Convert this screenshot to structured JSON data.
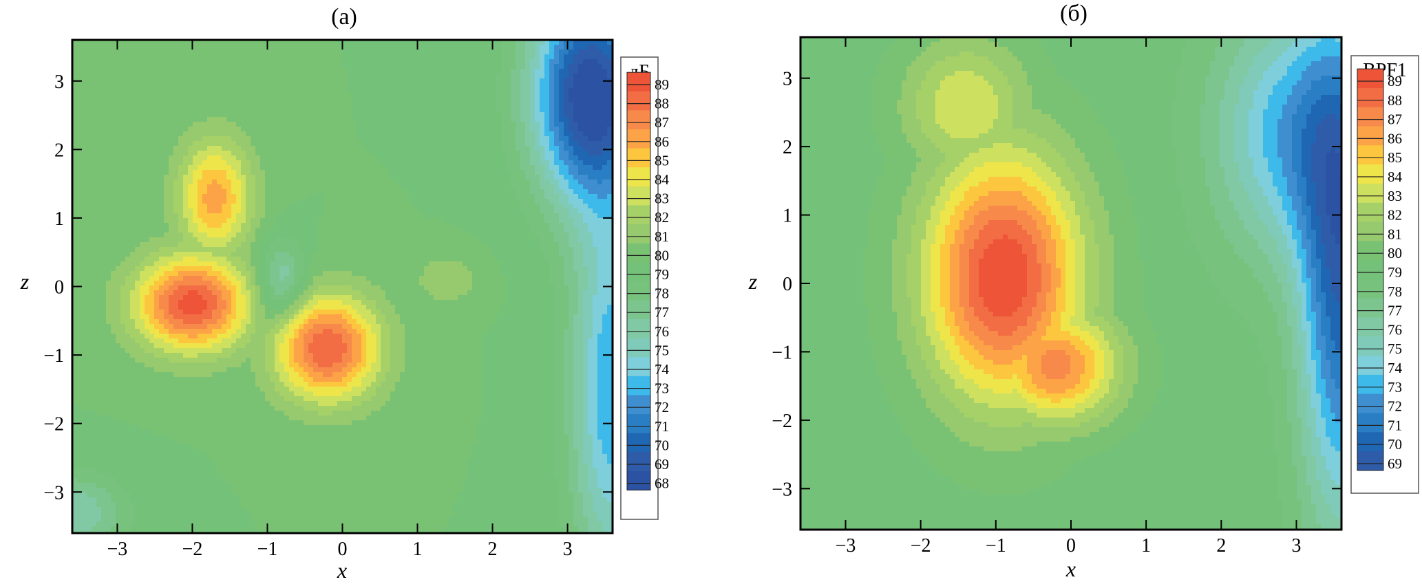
{
  "chart_data": [
    {
      "type": "contour",
      "title": "(а)",
      "xlabel": "x",
      "ylabel": "z",
      "xlim": [
        -3.6,
        3.6
      ],
      "ylim": [
        -3.6,
        3.6
      ],
      "xticks": [
        "−3",
        "−2",
        "−1",
        "0",
        "1",
        "2",
        "3"
      ],
      "yticks": [
        "3",
        "2",
        "1",
        "0",
        "−1",
        "−2",
        "−3"
      ],
      "legend_title": "дБ",
      "legend_levels": [
        89,
        88,
        87,
        86,
        85,
        84,
        83,
        82,
        81,
        80,
        79,
        78,
        77,
        76,
        75,
        74,
        73,
        72,
        71,
        70,
        69,
        68
      ],
      "level_range": [
        68,
        89.5
      ],
      "background_level": 80,
      "sources": [
        {
          "x": -2.0,
          "z": -0.25,
          "peak": 89.5,
          "sx": 0.55,
          "sz": 0.5
        },
        {
          "x": -0.2,
          "z": -0.9,
          "peak": 89.0,
          "sx": 0.5,
          "sz": 0.55
        },
        {
          "x": -1.7,
          "z": 1.3,
          "peak": 86.5,
          "sx": 0.35,
          "sz": 0.6
        },
        {
          "x": 1.4,
          "z": 0.1,
          "peak": 82.0,
          "sx": 0.3,
          "sz": 0.25
        },
        {
          "x": -0.8,
          "z": 0.1,
          "peak": -4.0,
          "sx": 0.22,
          "sz": 0.4
        },
        {
          "x": 3.3,
          "z": 2.8,
          "peak": -12.0,
          "sx": 0.55,
          "sz": 1.1
        },
        {
          "x": 3.6,
          "z": -1.5,
          "peak": -7.0,
          "sx": 0.4,
          "sz": 2.0
        },
        {
          "x": -3.6,
          "z": -3.3,
          "peak": -4.0,
          "sx": 0.5,
          "sz": 0.4
        }
      ]
    },
    {
      "type": "contour",
      "title": "(б)",
      "xlabel": "x",
      "ylabel": "z",
      "xlim": [
        -3.6,
        3.6
      ],
      "ylim": [
        -3.6,
        3.6
      ],
      "xticks": [
        "−3",
        "−2",
        "−1",
        "0",
        "1",
        "2",
        "3"
      ],
      "yticks": [
        "3",
        "2",
        "1",
        "0",
        "−1",
        "−2",
        "−3"
      ],
      "legend_title": "BPF1",
      "legend_levels": [
        89,
        88,
        87,
        86,
        85,
        84,
        83,
        82,
        81,
        80,
        79,
        78,
        77,
        76,
        75,
        74,
        73,
        72,
        71,
        70,
        69
      ],
      "level_range": [
        69,
        89.5
      ],
      "background_level": 79.5,
      "sources": [
        {
          "x": -0.9,
          "z": 0.1,
          "peak": 90.0,
          "sx": 0.75,
          "sz": 1.3
        },
        {
          "x": -0.2,
          "z": -1.2,
          "peak": 87.5,
          "sx": 0.6,
          "sz": 0.6
        },
        {
          "x": -1.4,
          "z": 2.6,
          "peak": 84.0,
          "sx": 0.6,
          "sz": 0.7
        },
        {
          "x": 2.9,
          "z": 2.2,
          "peak": -6.0,
          "sx": 0.7,
          "sz": 1.3
        },
        {
          "x": 3.6,
          "z": 0.0,
          "peak": -9.0,
          "sx": 0.4,
          "sz": 2.5
        }
      ]
    }
  ],
  "colormap": [
    {
      "level": 68,
      "color": "#2b52a3"
    },
    {
      "level": 69,
      "color": "#2f5ca8"
    },
    {
      "level": 70,
      "color": "#1f66b3"
    },
    {
      "level": 71,
      "color": "#2a7fc4"
    },
    {
      "level": 72,
      "color": "#3e8ed0"
    },
    {
      "level": 73,
      "color": "#3db9ea"
    },
    {
      "level": 74,
      "color": "#7ecfdb"
    },
    {
      "level": 75,
      "color": "#7fcab8"
    },
    {
      "level": 76,
      "color": "#80c9a4"
    },
    {
      "level": 77,
      "color": "#7cc58f"
    },
    {
      "level": 78,
      "color": "#77c27c"
    },
    {
      "level": 79,
      "color": "#74c179"
    },
    {
      "level": 80,
      "color": "#79c274"
    },
    {
      "level": 81,
      "color": "#97ca6e"
    },
    {
      "level": 82,
      "color": "#a6d068"
    },
    {
      "level": 83,
      "color": "#cee060"
    },
    {
      "level": 84,
      "color": "#eee54a"
    },
    {
      "level": 85,
      "color": "#fcc63e"
    },
    {
      "level": 86,
      "color": "#fba346"
    },
    {
      "level": 87,
      "color": "#f78a4a"
    },
    {
      "level": 88,
      "color": "#f26c44"
    },
    {
      "level": 89,
      "color": "#ee5437"
    }
  ]
}
